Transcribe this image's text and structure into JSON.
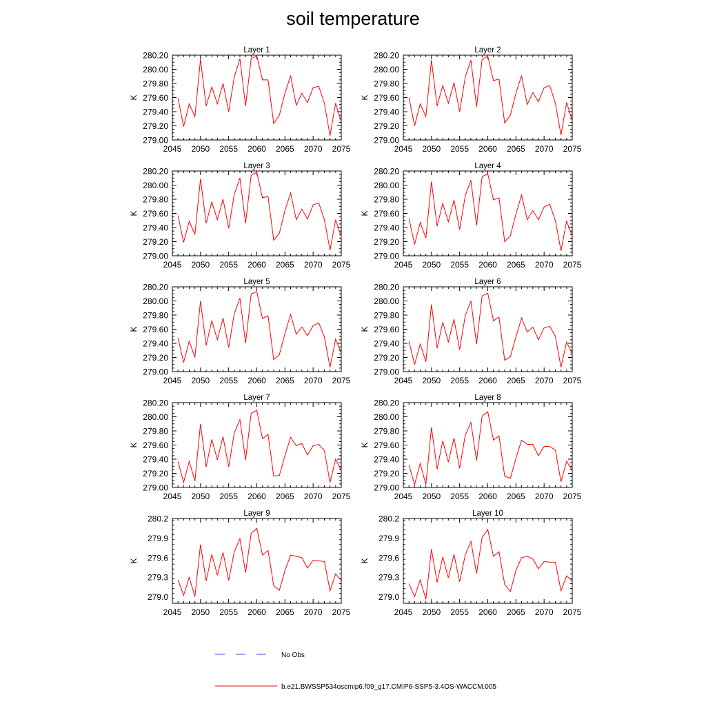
{
  "title": "soil temperature",
  "chart_data": [
    {
      "type": "line",
      "title": "Layer 1",
      "ylabel": "K",
      "xlim": [
        2045,
        2075
      ],
      "ylim": [
        279.0,
        280.2
      ],
      "xticks": [
        "2045",
        "2050",
        "2055",
        "2060",
        "2065",
        "2070",
        "2075"
      ],
      "yticks": [
        "279.00",
        "279.20",
        "279.40",
        "279.60",
        "279.80",
        "280.00",
        "280.20"
      ],
      "series": [
        {
          "color": "#ff0000",
          "x": [
            2046,
            2047,
            2048,
            2049,
            2050,
            2051,
            2052,
            2053,
            2054,
            2055,
            2056,
            2057,
            2058,
            2059,
            2060,
            2061,
            2062,
            2063,
            2064,
            2065,
            2066,
            2067,
            2068,
            2069,
            2070,
            2071,
            2072,
            2073,
            2074,
            2075
          ],
          "values": [
            279.59,
            279.19,
            279.51,
            279.33,
            280.14,
            279.48,
            279.75,
            279.51,
            279.8,
            279.4,
            279.89,
            280.15,
            279.48,
            280.15,
            280.19,
            279.85,
            279.85,
            279.23,
            279.35,
            279.66,
            279.91,
            279.49,
            279.66,
            279.53,
            279.74,
            279.76,
            279.52,
            279.06,
            279.52,
            279.26
          ]
        }
      ]
    },
    {
      "type": "line",
      "title": "Layer 2",
      "ylabel": "K",
      "xlim": [
        2045,
        2075
      ],
      "ylim": [
        279.0,
        280.2
      ],
      "xticks": [
        "2045",
        "2050",
        "2055",
        "2060",
        "2065",
        "2070",
        "2075"
      ],
      "yticks": [
        "279.00",
        "279.20",
        "279.40",
        "279.60",
        "279.80",
        "280.00",
        "280.20"
      ],
      "series": [
        {
          "color": "#ff0000",
          "x": [
            2046,
            2047,
            2048,
            2049,
            2050,
            2051,
            2052,
            2053,
            2054,
            2055,
            2056,
            2057,
            2058,
            2059,
            2060,
            2061,
            2062,
            2063,
            2064,
            2065,
            2066,
            2067,
            2068,
            2069,
            2070,
            2071,
            2072,
            2073,
            2074,
            2075
          ],
          "values": [
            279.6,
            279.2,
            279.51,
            279.33,
            280.13,
            279.48,
            279.77,
            279.52,
            279.81,
            279.4,
            279.89,
            280.13,
            279.47,
            280.14,
            280.19,
            279.84,
            279.86,
            279.24,
            279.35,
            279.66,
            279.91,
            279.5,
            279.67,
            279.54,
            279.74,
            279.77,
            279.52,
            279.07,
            279.53,
            279.27
          ]
        }
      ]
    },
    {
      "type": "line",
      "title": "Layer 3",
      "ylabel": "K",
      "xlim": [
        2045,
        2075
      ],
      "ylim": [
        279.0,
        280.2
      ],
      "xticks": [
        "2045",
        "2050",
        "2055",
        "2060",
        "2065",
        "2070",
        "2075"
      ],
      "yticks": [
        "279.00",
        "279.20",
        "279.40",
        "279.60",
        "279.80",
        "280.00",
        "280.20"
      ],
      "series": [
        {
          "color": "#ff0000",
          "x": [
            2046,
            2047,
            2048,
            2049,
            2050,
            2051,
            2052,
            2053,
            2054,
            2055,
            2056,
            2057,
            2058,
            2059,
            2060,
            2061,
            2062,
            2063,
            2064,
            2065,
            2066,
            2067,
            2068,
            2069,
            2070,
            2071,
            2072,
            2073,
            2074,
            2075
          ],
          "values": [
            279.57,
            279.19,
            279.49,
            279.3,
            280.09,
            279.46,
            279.76,
            279.51,
            279.8,
            279.39,
            279.87,
            280.1,
            279.46,
            280.14,
            280.18,
            279.82,
            279.84,
            279.22,
            279.32,
            279.64,
            279.89,
            279.51,
            279.66,
            279.52,
            279.72,
            279.75,
            279.51,
            279.08,
            279.51,
            279.27
          ]
        }
      ]
    },
    {
      "type": "line",
      "title": "Layer 4",
      "ylabel": "K",
      "xlim": [
        2045,
        2075
      ],
      "ylim": [
        279.0,
        280.2
      ],
      "xticks": [
        "2045",
        "2050",
        "2055",
        "2060",
        "2065",
        "2070",
        "2075"
      ],
      "yticks": [
        "279.00",
        "279.20",
        "279.40",
        "279.60",
        "279.80",
        "280.00",
        "280.20"
      ],
      "series": [
        {
          "color": "#ff0000",
          "x": [
            2046,
            2047,
            2048,
            2049,
            2050,
            2051,
            2052,
            2053,
            2054,
            2055,
            2056,
            2057,
            2058,
            2059,
            2060,
            2061,
            2062,
            2063,
            2064,
            2065,
            2066,
            2067,
            2068,
            2069,
            2070,
            2071,
            2072,
            2073,
            2074,
            2075
          ],
          "values": [
            279.53,
            279.16,
            279.47,
            279.25,
            280.05,
            279.42,
            279.74,
            279.48,
            279.79,
            279.37,
            279.85,
            280.07,
            279.43,
            280.12,
            280.16,
            279.79,
            279.82,
            279.2,
            279.28,
            279.59,
            279.86,
            279.51,
            279.64,
            279.51,
            279.69,
            279.73,
            279.5,
            279.07,
            279.49,
            279.28
          ]
        }
      ]
    },
    {
      "type": "line",
      "title": "Layer 5",
      "ylabel": "K",
      "xlim": [
        2045,
        2075
      ],
      "ylim": [
        279.0,
        280.2
      ],
      "xticks": [
        "2045",
        "2050",
        "2055",
        "2060",
        "2065",
        "2070",
        "2075"
      ],
      "yticks": [
        "279.00",
        "279.20",
        "279.40",
        "279.60",
        "279.80",
        "280.00",
        "280.20"
      ],
      "series": [
        {
          "color": "#ff0000",
          "x": [
            2046,
            2047,
            2048,
            2049,
            2050,
            2051,
            2052,
            2053,
            2054,
            2055,
            2056,
            2057,
            2058,
            2059,
            2060,
            2061,
            2062,
            2063,
            2064,
            2065,
            2066,
            2067,
            2068,
            2069,
            2070,
            2071,
            2072,
            2073,
            2074,
            2075
          ],
          "values": [
            279.48,
            279.13,
            279.43,
            279.2,
            280.0,
            279.37,
            279.72,
            279.45,
            279.76,
            279.34,
            279.82,
            280.04,
            279.4,
            280.1,
            280.13,
            279.75,
            279.79,
            279.17,
            279.24,
            279.54,
            279.81,
            279.53,
            279.63,
            279.51,
            279.65,
            279.69,
            279.49,
            279.06,
            279.46,
            279.26
          ]
        }
      ]
    },
    {
      "type": "line",
      "title": "Layer 6",
      "ylabel": "K",
      "xlim": [
        2045,
        2075
      ],
      "ylim": [
        279.0,
        280.2
      ],
      "xticks": [
        "2045",
        "2050",
        "2055",
        "2060",
        "2065",
        "2070",
        "2075"
      ],
      "yticks": [
        "279.00",
        "279.20",
        "279.40",
        "279.60",
        "279.80",
        "280.00",
        "280.20"
      ],
      "series": [
        {
          "color": "#ff0000",
          "x": [
            2046,
            2047,
            2048,
            2049,
            2050,
            2051,
            2052,
            2053,
            2054,
            2055,
            2056,
            2057,
            2058,
            2059,
            2060,
            2061,
            2062,
            2063,
            2064,
            2065,
            2066,
            2067,
            2068,
            2069,
            2070,
            2071,
            2072,
            2073,
            2074,
            2075
          ],
          "values": [
            279.43,
            279.1,
            279.39,
            279.14,
            279.95,
            279.33,
            279.7,
            279.42,
            279.74,
            279.31,
            279.79,
            280.0,
            279.39,
            280.07,
            280.11,
            279.72,
            279.77,
            279.16,
            279.21,
            279.49,
            279.76,
            279.56,
            279.63,
            279.45,
            279.62,
            279.64,
            279.5,
            279.06,
            279.42,
            279.25
          ]
        }
      ]
    },
    {
      "type": "line",
      "title": "Layer 7",
      "ylabel": "K",
      "xlim": [
        2045,
        2075
      ],
      "ylim": [
        279.0,
        280.2
      ],
      "xticks": [
        "2045",
        "2050",
        "2055",
        "2060",
        "2065",
        "2070",
        "2075"
      ],
      "yticks": [
        "279.00",
        "279.20",
        "279.40",
        "279.60",
        "279.80",
        "280.00",
        "280.20"
      ],
      "series": [
        {
          "color": "#ff0000",
          "x": [
            2046,
            2047,
            2048,
            2049,
            2050,
            2051,
            2052,
            2053,
            2054,
            2055,
            2056,
            2057,
            2058,
            2059,
            2060,
            2061,
            2062,
            2063,
            2064,
            2065,
            2066,
            2067,
            2068,
            2069,
            2070,
            2071,
            2072,
            2073,
            2074,
            2075
          ],
          "values": [
            279.37,
            279.07,
            279.37,
            279.09,
            279.9,
            279.29,
            279.68,
            279.39,
            279.72,
            279.29,
            279.77,
            279.96,
            279.39,
            280.05,
            280.09,
            279.69,
            279.75,
            279.16,
            279.17,
            279.45,
            279.71,
            279.59,
            279.62,
            279.46,
            279.59,
            279.61,
            279.52,
            279.07,
            279.4,
            279.24
          ]
        }
      ]
    },
    {
      "type": "line",
      "title": "Layer 8",
      "ylabel": "K",
      "xlim": [
        2045,
        2075
      ],
      "ylim": [
        279.0,
        280.2
      ],
      "xticks": [
        "2045",
        "2050",
        "2055",
        "2060",
        "2065",
        "2070",
        "2075"
      ],
      "yticks": [
        "279.00",
        "279.20",
        "279.40",
        "279.60",
        "279.80",
        "280.00",
        "280.20"
      ],
      "series": [
        {
          "color": "#ff0000",
          "x": [
            2046,
            2047,
            2048,
            2049,
            2050,
            2051,
            2052,
            2053,
            2054,
            2055,
            2056,
            2057,
            2058,
            2059,
            2060,
            2061,
            2062,
            2063,
            2064,
            2065,
            2066,
            2067,
            2068,
            2069,
            2070,
            2071,
            2072,
            2073,
            2074,
            2075
          ],
          "values": [
            279.32,
            279.04,
            279.34,
            279.04,
            279.85,
            279.26,
            279.66,
            279.36,
            279.7,
            279.27,
            279.74,
            279.92,
            279.38,
            280.01,
            280.07,
            279.67,
            279.73,
            279.16,
            279.13,
            279.41,
            279.67,
            279.61,
            279.61,
            279.45,
            279.58,
            279.58,
            279.53,
            279.08,
            279.37,
            279.24
          ]
        }
      ]
    },
    {
      "type": "line",
      "title": "Layer 9",
      "ylabel": "K",
      "xlim": [
        2045,
        2075
      ],
      "ylim": [
        278.9,
        280.2
      ],
      "xticks": [
        "2045",
        "2050",
        "2055",
        "2060",
        "2065",
        "2070",
        "2075"
      ],
      "yticks": [
        "279.0",
        "279.3",
        "279.6",
        "279.9",
        "280.2"
      ],
      "series": [
        {
          "color": "#ff0000",
          "x": [
            2046,
            2047,
            2048,
            2049,
            2050,
            2051,
            2052,
            2053,
            2054,
            2055,
            2056,
            2057,
            2058,
            2059,
            2060,
            2061,
            2062,
            2063,
            2064,
            2065,
            2066,
            2067,
            2068,
            2069,
            2070,
            2071,
            2072,
            2073,
            2074,
            2075
          ],
          "values": [
            279.26,
            279.02,
            279.3,
            279.0,
            279.8,
            279.24,
            279.65,
            279.33,
            279.68,
            279.25,
            279.69,
            279.89,
            279.37,
            279.97,
            280.05,
            279.64,
            279.71,
            279.17,
            279.1,
            279.4,
            279.64,
            279.62,
            279.6,
            279.44,
            279.56,
            279.55,
            279.54,
            279.09,
            279.35,
            279.25
          ]
        }
      ]
    },
    {
      "type": "line",
      "title": "Layer 10",
      "ylabel": "K",
      "xlim": [
        2045,
        2075
      ],
      "ylim": [
        278.9,
        280.2
      ],
      "xticks": [
        "2045",
        "2050",
        "2055",
        "2060",
        "2065",
        "2070",
        "2075"
      ],
      "yticks": [
        "279.0",
        "279.3",
        "279.6",
        "279.9",
        "280.2"
      ],
      "series": [
        {
          "color": "#ff0000",
          "x": [
            2046,
            2047,
            2048,
            2049,
            2050,
            2051,
            2052,
            2053,
            2054,
            2055,
            2056,
            2057,
            2058,
            2059,
            2060,
            2061,
            2062,
            2063,
            2064,
            2065,
            2066,
            2067,
            2068,
            2069,
            2070,
            2071,
            2072,
            2073,
            2074,
            2075
          ],
          "values": [
            279.2,
            279.0,
            279.26,
            278.96,
            279.73,
            279.22,
            279.61,
            279.29,
            279.65,
            279.23,
            279.64,
            279.85,
            279.36,
            279.91,
            280.03,
            279.62,
            279.69,
            279.19,
            279.08,
            279.4,
            279.6,
            279.62,
            279.58,
            279.43,
            279.54,
            279.53,
            279.53,
            279.09,
            279.32,
            279.24
          ]
        }
      ]
    }
  ],
  "legend": {
    "items": [
      {
        "label": "No Obs",
        "color": "#4a4adf",
        "style": "dashed"
      },
      {
        "label": "b.e21.BWSSP534oscmip6.f09_g17.CMIP6-SSP5-3.4OS-WACCM.005",
        "color": "#ff0000",
        "style": "solid"
      }
    ]
  }
}
